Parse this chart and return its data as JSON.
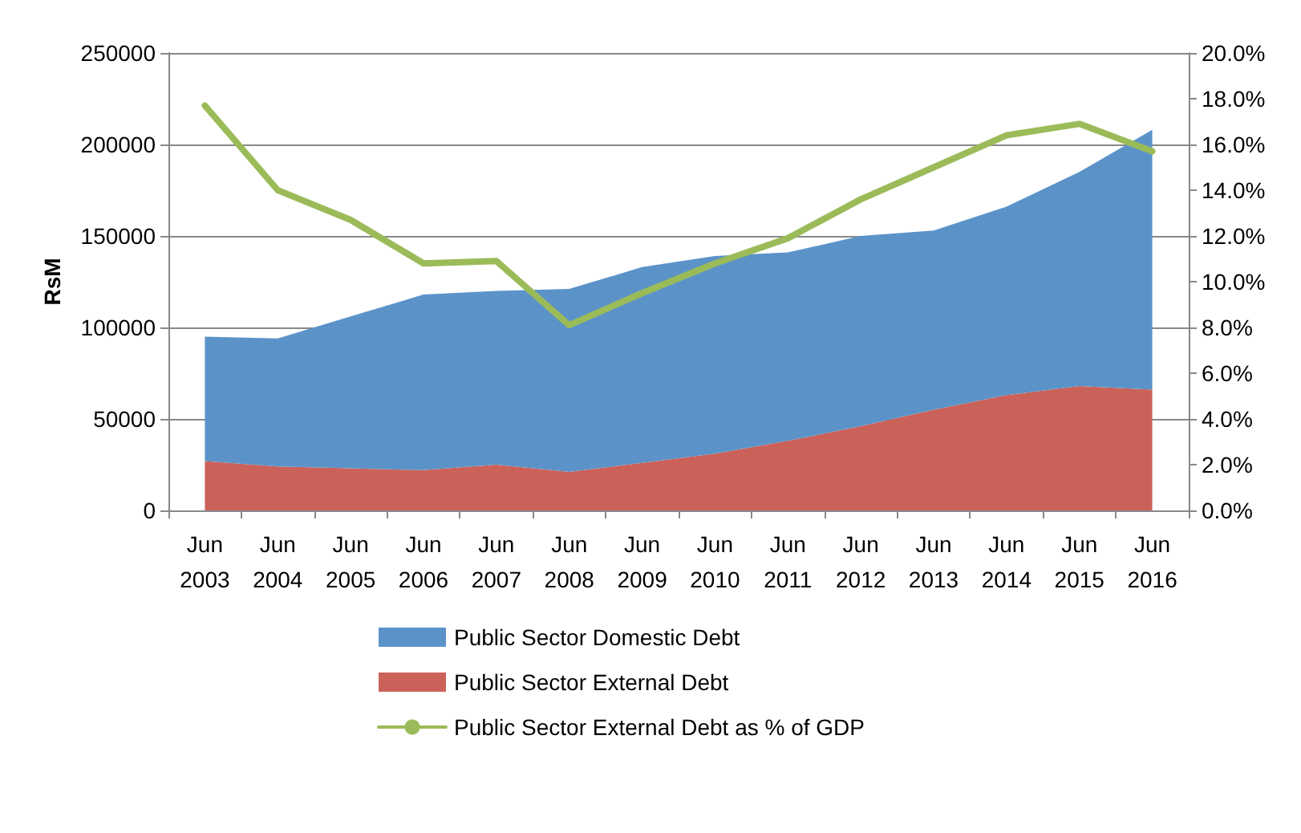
{
  "chart_data": {
    "type": "area",
    "stacked": true,
    "ylabel": "RsM",
    "categories": [
      "Jun 2003",
      "Jun 2004",
      "Jun 2005",
      "Jun 2006",
      "Jun 2007",
      "Jun 2008",
      "Jun 2009",
      "Jun 2010",
      "Jun 2011",
      "Jun 2012",
      "Jun 2013",
      "Jun 2014",
      "Jun 2015",
      "Jun 2016"
    ],
    "series": [
      {
        "name": "Public Sector External Debt",
        "color": "#cb625a",
        "values": [
          27000,
          24000,
          23000,
          22000,
          25000,
          21000,
          26000,
          31000,
          38000,
          46000,
          55000,
          63000,
          68000,
          66000
        ]
      },
      {
        "name": "Public Sector Domestic Debt",
        "color": "#5b93c9",
        "values": [
          68000,
          70000,
          83000,
          96000,
          95000,
          100000,
          107000,
          108000,
          103000,
          104000,
          98000,
          103000,
          117000,
          142000
        ]
      },
      {
        "name": "Public Sector External Debt as % of GDP",
        "type": "line",
        "axis": "y2",
        "color": "#9bbb59",
        "values": [
          17.7,
          14.0,
          12.7,
          10.8,
          10.9,
          8.1,
          9.5,
          10.8,
          11.9,
          13.6,
          15.0,
          16.4,
          16.9,
          15.7
        ]
      }
    ],
    "ylim": [
      0,
      250000
    ],
    "yticks": [
      0,
      50000,
      100000,
      150000,
      200000,
      250000
    ],
    "y2lim": [
      0,
      20
    ],
    "y2ticks": [
      {
        "value": 0,
        "label": "0.0%"
      },
      {
        "value": 2,
        "label": "2.0%"
      },
      {
        "value": 4,
        "label": "4.0%"
      },
      {
        "value": 6,
        "label": "6.0%"
      },
      {
        "value": 8,
        "label": "8.0%"
      },
      {
        "value": 10,
        "label": "10.0%"
      },
      {
        "value": 12,
        "label": "12.0%"
      },
      {
        "value": 14,
        "label": "14.0%"
      },
      {
        "value": 16,
        "label": "16.0%"
      },
      {
        "value": 18,
        "label": "18.0%"
      },
      {
        "value": 20,
        "label": "20.0%"
      }
    ],
    "grid": "y",
    "legend": "bottom",
    "marker": "none",
    "line_style": "solid"
  }
}
